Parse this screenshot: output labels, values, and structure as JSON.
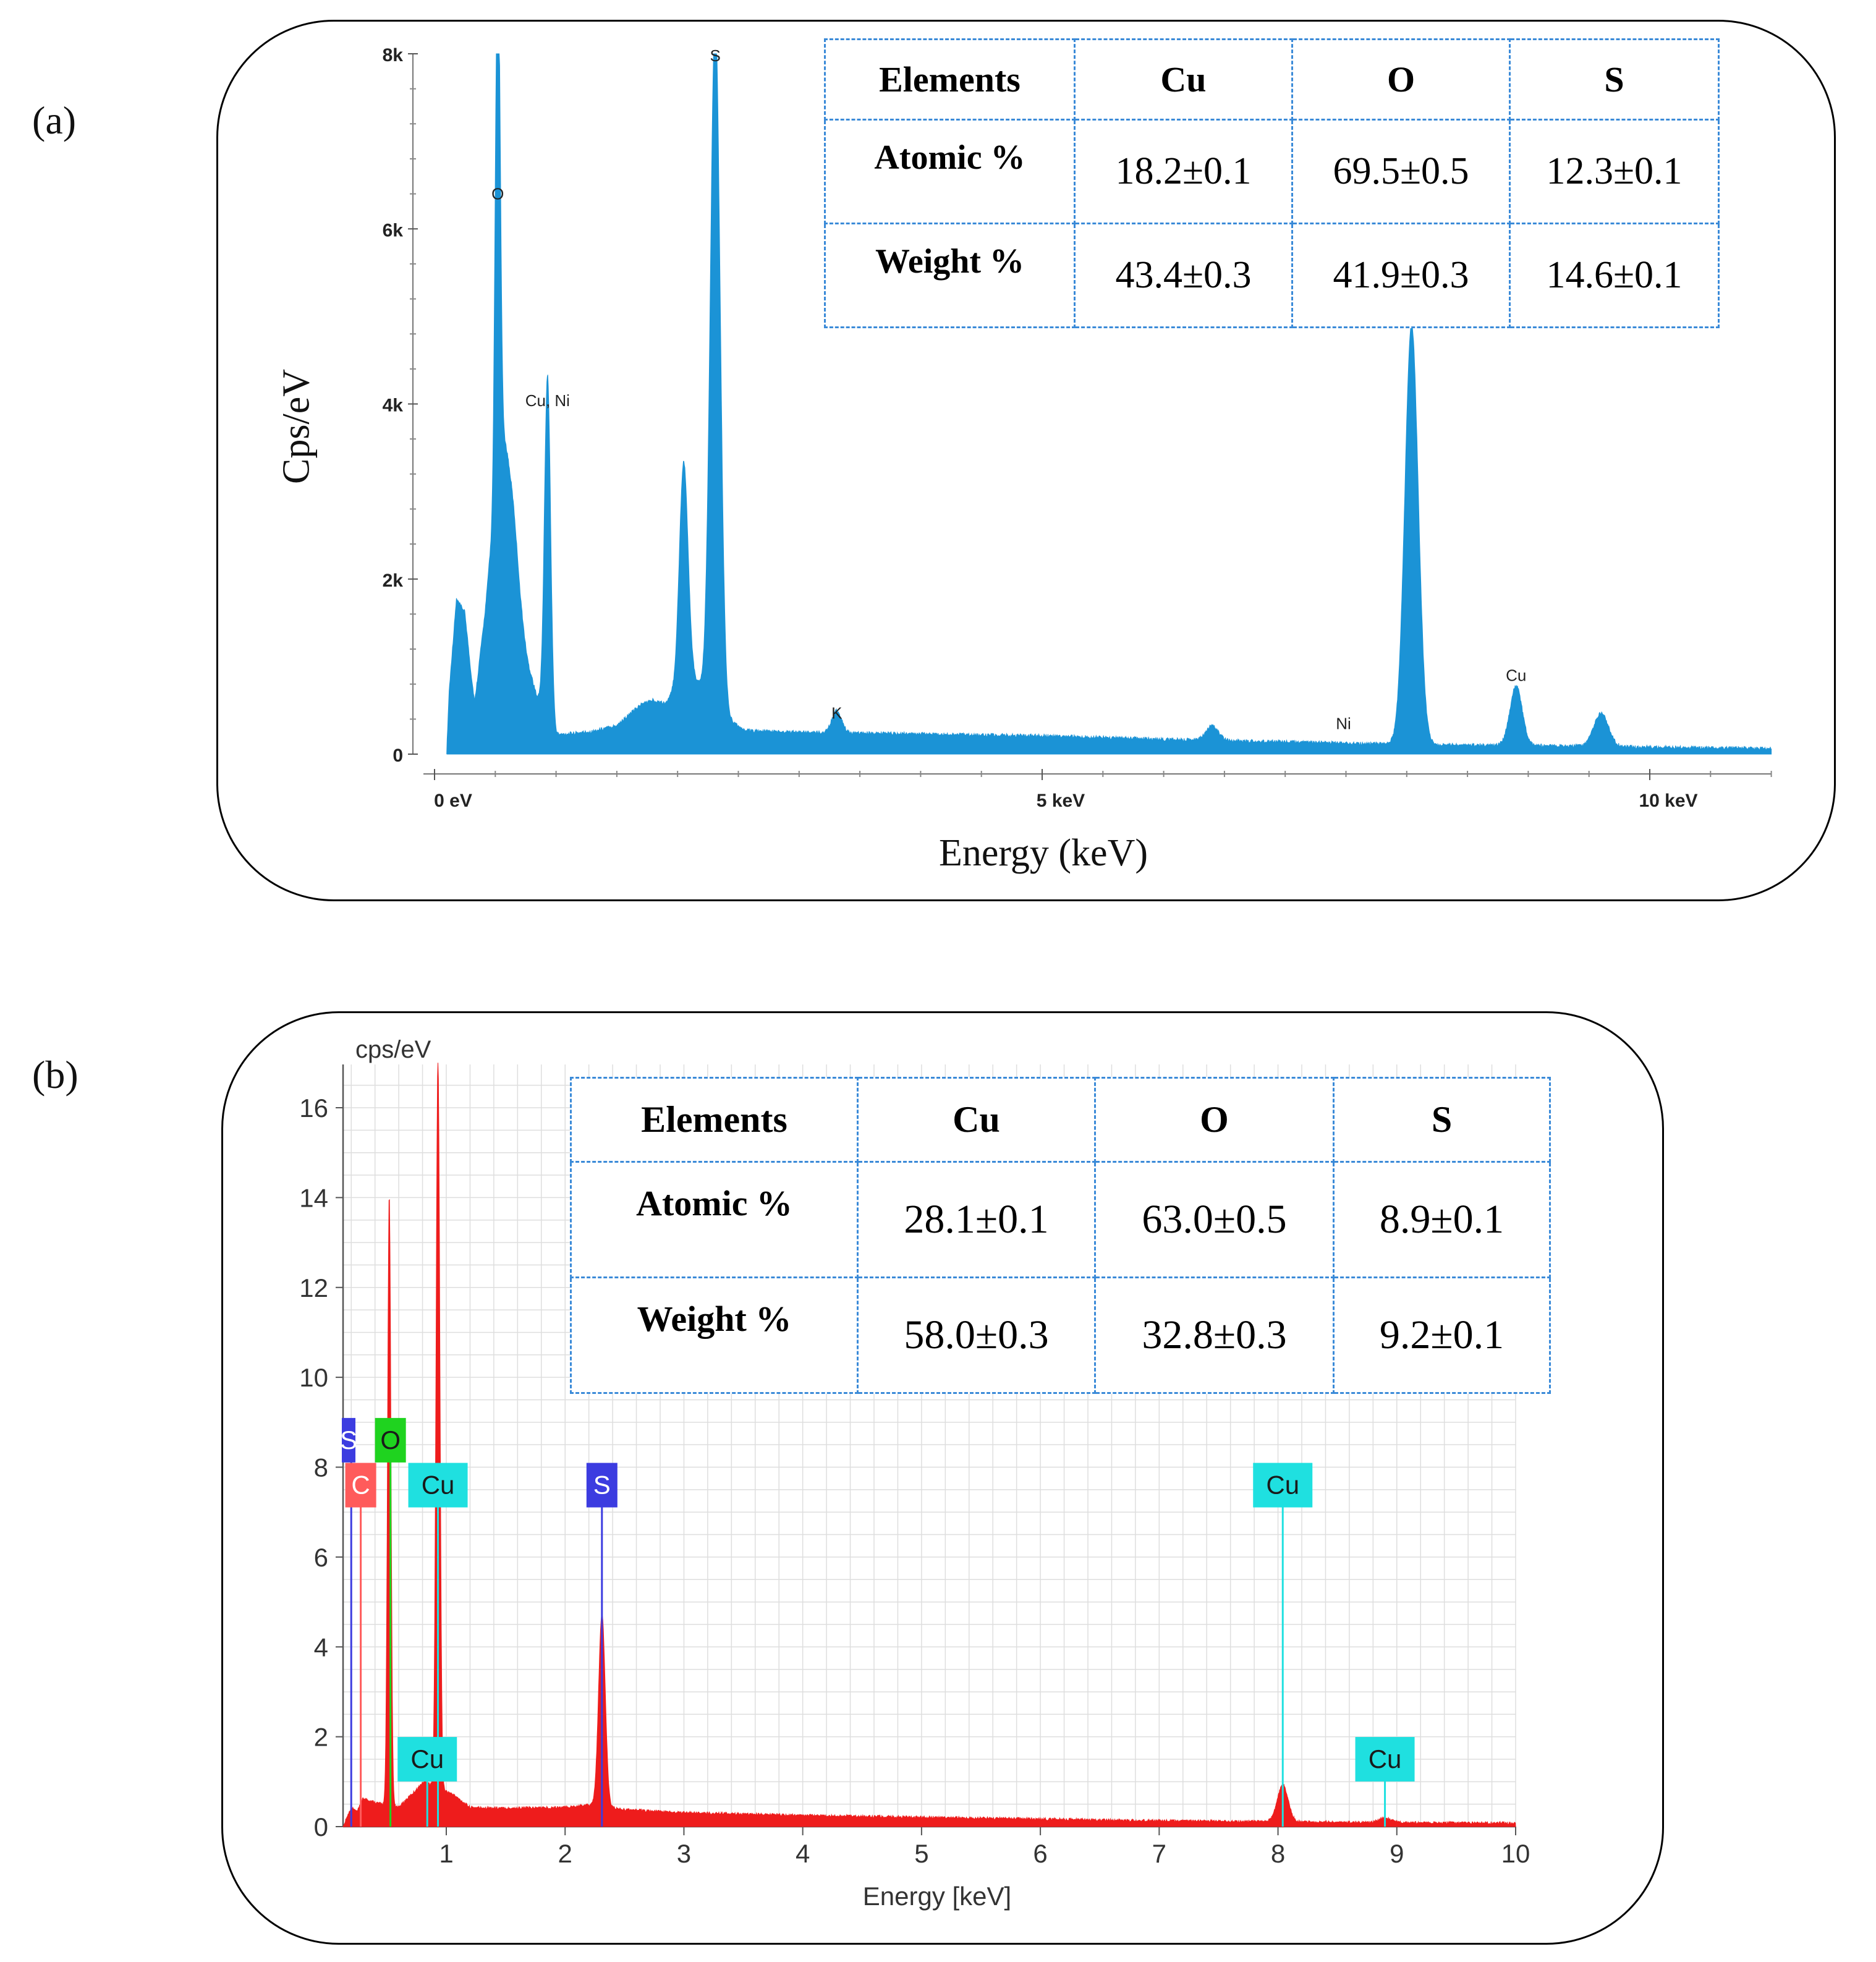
{
  "panel_a": {
    "label": "(a)",
    "x_tick_labels": [
      "0 eV",
      "5 keV",
      "10 keV"
    ],
    "y_tick_labels": [
      "0",
      "2k",
      "4k",
      "6k",
      "8k"
    ],
    "xlabel": "Energy (keV)",
    "ylabel": "Cps/eV",
    "color": "#1b93d6",
    "peak_labels": [
      {
        "text": "O",
        "x": 0.52,
        "y": 6280
      },
      {
        "text": "Cu, Ni",
        "x": 0.93,
        "y": 3920
      },
      {
        "text": "S",
        "x": 2.31,
        "y": 7860
      },
      {
        "text": "K",
        "x": 3.31,
        "y": 350
      },
      {
        "text": "Ni",
        "x": 7.48,
        "y": 230
      },
      {
        "text": "Cu",
        "x": 8.9,
        "y": 780
      }
    ],
    "table": {
      "headers": [
        "Elements",
        "Cu",
        "O",
        "S"
      ],
      "rows": [
        {
          "label": "Atomic %",
          "values": [
            "18.2±0.1",
            "69.5±0.5",
            "12.3±0.1"
          ]
        },
        {
          "label": "Weight %",
          "values": [
            "43.4±0.3",
            "41.9±0.3",
            "14.6±0.1"
          ]
        }
      ]
    }
  },
  "panel_b": {
    "label": "(b)",
    "unit_label": "cps/eV",
    "x_tick_labels": [
      "1",
      "2",
      "3",
      "4",
      "5",
      "6",
      "7",
      "8",
      "9",
      "10"
    ],
    "y_tick_labels": [
      "0",
      "2",
      "4",
      "6",
      "8",
      "10",
      "12",
      "14",
      "16"
    ],
    "xlabel": "Energy [keV]",
    "color": "#ee1c1c",
    "element_markers": [
      {
        "text": "S",
        "x": 0.2,
        "height": 8.6,
        "color": "#3c3ce0"
      },
      {
        "text": "O",
        "x": 0.53,
        "height": 8.6,
        "color": "#1fd31f"
      },
      {
        "text": "C",
        "x": 0.28,
        "height": 7.6,
        "color": "#ff5b5b"
      },
      {
        "text": "Cu",
        "x": 0.93,
        "height": 7.6,
        "color": "#1fe0e0"
      },
      {
        "text": "S",
        "x": 2.31,
        "height": 7.6,
        "color": "#3c3ce0"
      },
      {
        "text": "Cu",
        "x": 8.04,
        "height": 7.6,
        "color": "#1fe0e0"
      },
      {
        "text": "Cu",
        "x": 0.84,
        "height": 1.5,
        "color": "#1fe0e0"
      },
      {
        "text": "Cu",
        "x": 8.9,
        "height": 1.5,
        "color": "#1fe0e0"
      }
    ],
    "table": {
      "headers": [
        "Elements",
        "Cu",
        "O",
        "S"
      ],
      "rows": [
        {
          "label": "Atomic %",
          "values": [
            "28.1±0.1",
            "63.0±0.5",
            "8.9±0.1"
          ]
        },
        {
          "label": "Weight %",
          "values": [
            "58.0±0.3",
            "32.8±0.3",
            "9.2±0.1"
          ]
        }
      ]
    }
  },
  "chart_data": [
    {
      "type": "area",
      "title": "(a)",
      "xlabel": "Energy (keV)",
      "ylabel": "Cps/eV",
      "xlim": [
        0,
        11
      ],
      "ylim": [
        0,
        8000
      ],
      "x_ticks": [
        0,
        5,
        10
      ],
      "y_ticks": [
        0,
        2000,
        4000,
        6000,
        8000
      ],
      "baseline": [
        [
          0.1,
          0
        ],
        [
          0.12,
          700
        ],
        [
          0.18,
          1750
        ],
        [
          0.25,
          1600
        ],
        [
          0.3,
          900
        ],
        [
          0.33,
          550
        ],
        [
          0.38,
          1050
        ],
        [
          0.45,
          1500
        ],
        [
          0.55,
          1100
        ],
        [
          0.62,
          550
        ],
        [
          0.7,
          450
        ],
        [
          0.8,
          640
        ],
        [
          0.9,
          500
        ],
        [
          1.0,
          200
        ],
        [
          1.3,
          240
        ],
        [
          1.5,
          310
        ],
        [
          1.7,
          550
        ],
        [
          1.8,
          600
        ],
        [
          1.9,
          560
        ],
        [
          2.0,
          750
        ],
        [
          2.1,
          900
        ],
        [
          2.4,
          400
        ],
        [
          2.55,
          250
        ],
        [
          3.0,
          230
        ],
        [
          4.0,
          210
        ],
        [
          5.0,
          190
        ],
        [
          6.0,
          150
        ],
        [
          7.0,
          120
        ],
        [
          8.0,
          90
        ],
        [
          9.0,
          80
        ],
        [
          10.0,
          60
        ],
        [
          11.0,
          45
        ]
      ],
      "peaks": [
        {
          "x": 0.52,
          "y": 6300,
          "w": 0.02
        },
        {
          "x": 0.6,
          "y": 2700,
          "w": 0.09
        },
        {
          "x": 0.93,
          "y": 3900,
          "w": 0.025
        },
        {
          "x": 2.05,
          "y": 2500,
          "w": 0.035
        },
        {
          "x": 2.31,
          "y": 7900,
          "w": 0.04
        },
        {
          "x": 3.31,
          "y": 250,
          "w": 0.04
        },
        {
          "x": 6.4,
          "y": 170,
          "w": 0.05
        },
        {
          "x": 8.04,
          "y": 4800,
          "w": 0.055
        },
        {
          "x": 8.9,
          "y": 680,
          "w": 0.05
        },
        {
          "x": 9.6,
          "y": 380,
          "w": 0.06
        }
      ]
    },
    {
      "type": "area",
      "title": "(b)",
      "xlabel": "Energy [keV]",
      "ylabel": "cps/eV",
      "xlim": [
        0.15,
        10
      ],
      "ylim": [
        0,
        17
      ],
      "x_ticks": [
        1,
        2,
        3,
        4,
        5,
        6,
        7,
        8,
        9,
        10
      ],
      "y_ticks": [
        0,
        2,
        4,
        6,
        8,
        10,
        12,
        14,
        16
      ],
      "baseline": [
        [
          0.15,
          0.1
        ],
        [
          0.2,
          0.4
        ],
        [
          0.25,
          0.3
        ],
        [
          0.3,
          0.6
        ],
        [
          0.42,
          0.5
        ],
        [
          0.6,
          0.4
        ],
        [
          0.75,
          0.8
        ],
        [
          0.82,
          1.0
        ],
        [
          0.87,
          0.9
        ],
        [
          1.05,
          0.7
        ],
        [
          1.2,
          0.4
        ],
        [
          1.5,
          0.38
        ],
        [
          2.0,
          0.4
        ],
        [
          2.2,
          0.45
        ],
        [
          2.5,
          0.35
        ],
        [
          3.0,
          0.28
        ],
        [
          4.0,
          0.22
        ],
        [
          5.0,
          0.18
        ],
        [
          6.0,
          0.14
        ],
        [
          7.0,
          0.1
        ],
        [
          8.0,
          0.08
        ],
        [
          9.0,
          0.06
        ],
        [
          10.0,
          0.05
        ]
      ],
      "peaks": [
        {
          "x": 0.52,
          "y": 13.6,
          "w": 0.014
        },
        {
          "x": 0.93,
          "y": 16.3,
          "w": 0.016
        },
        {
          "x": 2.31,
          "y": 4.3,
          "w": 0.028
        },
        {
          "x": 8.04,
          "y": 0.82,
          "w": 0.045
        },
        {
          "x": 8.9,
          "y": 0.1,
          "w": 0.05
        }
      ],
      "element_lines": [
        {
          "element": "C",
          "energy": 0.28
        },
        {
          "element": "O",
          "energy": 0.53
        },
        {
          "element": "Cu",
          "energy": 0.93
        },
        {
          "element": "Cu",
          "energy": 0.84
        },
        {
          "element": "S",
          "energy": 2.31
        },
        {
          "element": "Cu",
          "energy": 8.04
        },
        {
          "element": "Cu",
          "energy": 8.9
        }
      ]
    }
  ]
}
